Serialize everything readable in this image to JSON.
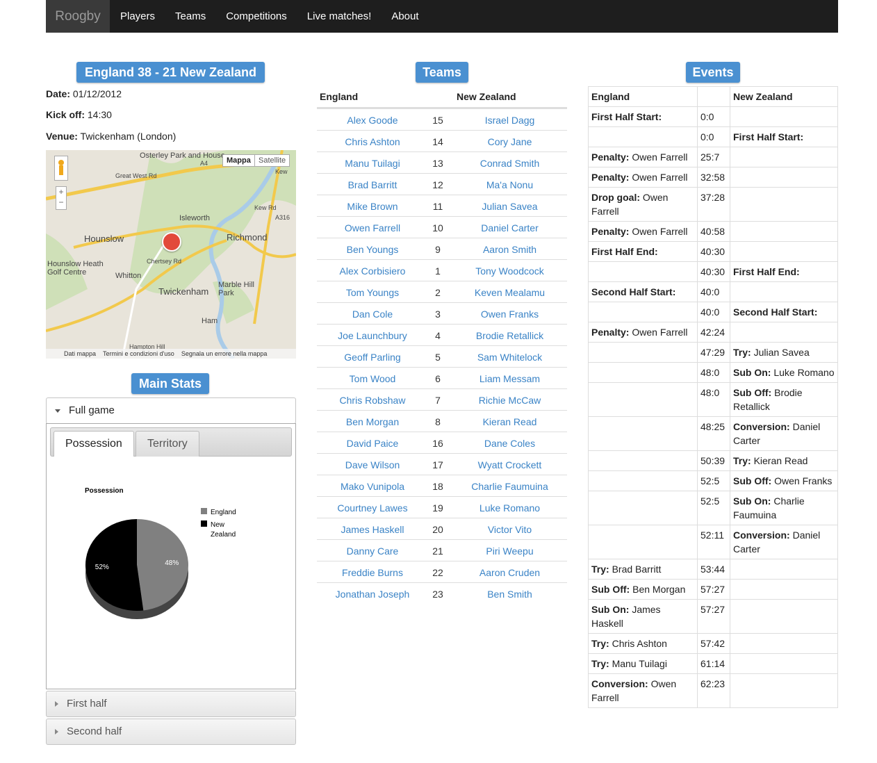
{
  "nav": {
    "brand": "Roogby",
    "items": [
      "Players",
      "Teams",
      "Competitions",
      "Live matches!",
      "About"
    ]
  },
  "match": {
    "title": "England 38 - 21 New Zealand",
    "date_label": "Date:",
    "date": "01/12/2012",
    "kickoff_label": "Kick off:",
    "kickoff": "14:30",
    "venue_label": "Venue:",
    "venue": "Twickenham (London)"
  },
  "map": {
    "btn_map": "Mappa",
    "btn_sat": "Satellite",
    "places": [
      "Osterley Park and House",
      "Isleworth",
      "Hounslow",
      "Richmond",
      "Hounslow Heath Golf Centre",
      "Whitton",
      "Twickenham",
      "Marble Hill Park",
      "Ham",
      "Great West Rd",
      "Kew",
      "Kew Rd",
      "A316",
      "A4",
      "Chertsey Rd",
      "Hampton Hill"
    ],
    "footer": [
      "Dati mappa",
      "Termini e condizioni d'uso",
      "Segnala un errore nella mappa"
    ]
  },
  "stats": {
    "title": "Main Stats",
    "full_game": "Full game",
    "first_half": "First half",
    "second_half": "Second half",
    "tabs": [
      "Possession",
      "Territory"
    ]
  },
  "chart_data": {
    "type": "pie",
    "title": "Possession",
    "categories": [
      "England",
      "New Zealand"
    ],
    "values": [
      48,
      52
    ],
    "labels": [
      "48%",
      "52%"
    ],
    "colors": [
      "#808080",
      "#000000"
    ],
    "legend": "right"
  },
  "teams": {
    "title": "Teams",
    "home": "England",
    "away": "New Zealand",
    "rows": [
      {
        "h": "Alex Goode",
        "n": "15",
        "a": "Israel Dagg"
      },
      {
        "h": "Chris Ashton",
        "n": "14",
        "a": "Cory Jane"
      },
      {
        "h": "Manu Tuilagi",
        "n": "13",
        "a": "Conrad Smith"
      },
      {
        "h": "Brad Barritt",
        "n": "12",
        "a": "Ma'a Nonu"
      },
      {
        "h": "Mike Brown",
        "n": "11",
        "a": "Julian Savea"
      },
      {
        "h": "Owen Farrell",
        "n": "10",
        "a": "Daniel Carter"
      },
      {
        "h": "Ben Youngs",
        "n": "9",
        "a": "Aaron Smith"
      },
      {
        "h": "Alex Corbisiero",
        "n": "1",
        "a": "Tony Woodcock"
      },
      {
        "h": "Tom Youngs",
        "n": "2",
        "a": "Keven Mealamu"
      },
      {
        "h": "Dan Cole",
        "n": "3",
        "a": "Owen Franks"
      },
      {
        "h": "Joe Launchbury",
        "n": "4",
        "a": "Brodie Retallick"
      },
      {
        "h": "Geoff Parling",
        "n": "5",
        "a": "Sam Whitelock"
      },
      {
        "h": "Tom Wood",
        "n": "6",
        "a": "Liam Messam"
      },
      {
        "h": "Chris Robshaw",
        "n": "7",
        "a": "Richie McCaw"
      },
      {
        "h": "Ben Morgan",
        "n": "8",
        "a": "Kieran Read"
      },
      {
        "h": "David Paice",
        "n": "16",
        "a": "Dane Coles"
      },
      {
        "h": "Dave Wilson",
        "n": "17",
        "a": "Wyatt Crockett"
      },
      {
        "h": "Mako Vunipola",
        "n": "18",
        "a": "Charlie Faumuina"
      },
      {
        "h": "Courtney Lawes",
        "n": "19",
        "a": "Luke Romano"
      },
      {
        "h": "James Haskell",
        "n": "20",
        "a": "Victor Vito"
      },
      {
        "h": "Danny Care",
        "n": "21",
        "a": "Piri Weepu"
      },
      {
        "h": "Freddie Burns",
        "n": "22",
        "a": "Aaron Cruden"
      },
      {
        "h": "Jonathan Joseph",
        "n": "23",
        "a": "Ben Smith"
      }
    ]
  },
  "events": {
    "title": "Events",
    "home": "England",
    "away": "New Zealand",
    "rows": [
      {
        "hk": "First Half Start:",
        "hv": "",
        "t": "0:0",
        "ak": "",
        "av": ""
      },
      {
        "hk": "",
        "hv": "",
        "t": "0:0",
        "ak": "First Half Start:",
        "av": ""
      },
      {
        "hk": "Penalty:",
        "hv": " Owen Farrell",
        "t": "25:7",
        "ak": "",
        "av": ""
      },
      {
        "hk": "Penalty:",
        "hv": " Owen Farrell",
        "t": "32:58",
        "ak": "",
        "av": ""
      },
      {
        "hk": "Drop goal:",
        "hv": " Owen Farrell",
        "t": "37:28",
        "ak": "",
        "av": ""
      },
      {
        "hk": "Penalty:",
        "hv": " Owen Farrell",
        "t": "40:58",
        "ak": "",
        "av": ""
      },
      {
        "hk": "First Half End:",
        "hv": "",
        "t": "40:30",
        "ak": "",
        "av": ""
      },
      {
        "hk": "",
        "hv": "",
        "t": "40:30",
        "ak": "First Half End:",
        "av": ""
      },
      {
        "hk": "Second Half Start:",
        "hv": "",
        "t": "40:0",
        "ak": "",
        "av": ""
      },
      {
        "hk": "",
        "hv": "",
        "t": "40:0",
        "ak": "Second Half Start:",
        "av": ""
      },
      {
        "hk": "Penalty:",
        "hv": " Owen Farrell",
        "t": "42:24",
        "ak": "",
        "av": ""
      },
      {
        "hk": "",
        "hv": "",
        "t": "47:29",
        "ak": "Try:",
        "av": " Julian Savea"
      },
      {
        "hk": "",
        "hv": "",
        "t": "48:0",
        "ak": "Sub On:",
        "av": " Luke Romano"
      },
      {
        "hk": "",
        "hv": "",
        "t": "48:0",
        "ak": "Sub Off:",
        "av": " Brodie Retallick"
      },
      {
        "hk": "",
        "hv": "",
        "t": "48:25",
        "ak": "Conversion:",
        "av": " Daniel Carter"
      },
      {
        "hk": "",
        "hv": "",
        "t": "50:39",
        "ak": "Try:",
        "av": " Kieran Read"
      },
      {
        "hk": "",
        "hv": "",
        "t": "52:5",
        "ak": "Sub Off:",
        "av": " Owen Franks"
      },
      {
        "hk": "",
        "hv": "",
        "t": "52:5",
        "ak": "Sub On:",
        "av": " Charlie Faumuina"
      },
      {
        "hk": "",
        "hv": "",
        "t": "52:11",
        "ak": "Conversion:",
        "av": " Daniel Carter"
      },
      {
        "hk": "Try:",
        "hv": " Brad Barritt",
        "t": "53:44",
        "ak": "",
        "av": ""
      },
      {
        "hk": "Sub Off:",
        "hv": " Ben Morgan",
        "t": "57:27",
        "ak": "",
        "av": ""
      },
      {
        "hk": "Sub On:",
        "hv": " James Haskell",
        "t": "57:27",
        "ak": "",
        "av": ""
      },
      {
        "hk": "Try:",
        "hv": " Chris Ashton",
        "t": "57:42",
        "ak": "",
        "av": ""
      },
      {
        "hk": "Try:",
        "hv": " Manu Tuilagi",
        "t": "61:14",
        "ak": "",
        "av": ""
      },
      {
        "hk": "Conversion:",
        "hv": " Owen Farrell",
        "t": "62:23",
        "ak": "",
        "av": ""
      }
    ]
  }
}
